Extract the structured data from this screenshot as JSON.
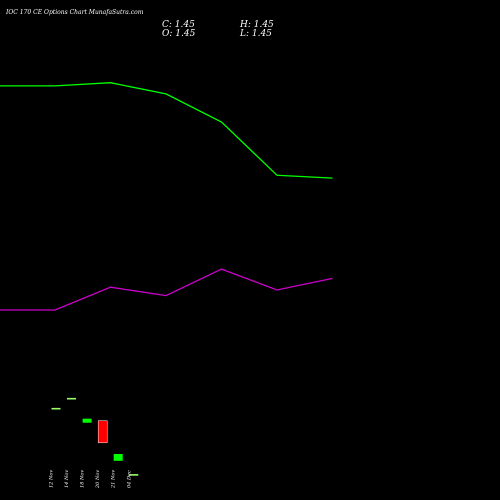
{
  "header": {
    "title": "IOC 170 CE Options Chart MunafaSutra.com",
    "close": "C: 1.45",
    "open": "O: 1.45",
    "high": "H: 1.45",
    "low": "L: 1.45"
  },
  "colors": {
    "background": "#000000",
    "upper_line": "#00ff00",
    "lower_line": "#cc00cc",
    "bull_candle": "#00ff00",
    "bear_candle": "#ff0000",
    "doji": "#99ff66"
  },
  "chart_data": {
    "type": "candlestick",
    "title": "IOC 170 CE Options Chart MunafaSutra.com",
    "x": [
      "12 Nov",
      "14 Nov",
      "18 Nov",
      "20 Nov",
      "21 Nov",
      "04 Dec"
    ],
    "candles": [
      {
        "date": "12 Nov",
        "open": 3.1,
        "high": 3.1,
        "low": 3.1,
        "close": 3.1,
        "color": "doji"
      },
      {
        "date": "14 Nov",
        "open": 3.35,
        "high": 3.35,
        "low": 3.35,
        "close": 3.35,
        "color": "doji"
      },
      {
        "date": "18 Nov",
        "open": 2.75,
        "high": 2.85,
        "low": 2.75,
        "close": 2.85,
        "color": "bull"
      },
      {
        "date": "20 Nov",
        "open": 2.8,
        "high": 2.8,
        "low": 2.25,
        "close": 2.25,
        "color": "bear"
      },
      {
        "date": "21 Nov",
        "open": 1.8,
        "high": 1.97,
        "low": 1.8,
        "close": 1.97,
        "color": "bull"
      },
      {
        "date": "04 Dec",
        "open": 1.45,
        "high": 1.45,
        "low": 1.45,
        "close": 1.45,
        "color": "doji"
      }
    ],
    "overlay_lines": [
      {
        "color": "#00ff00",
        "values": [
          11.15,
          11.15,
          11.23,
          10.95,
          10.25,
          8.92,
          8.85
        ]
      },
      {
        "color": "#cc00cc",
        "values": [
          5.56,
          5.56,
          6.13,
          5.92,
          6.58,
          6.06,
          6.35
        ]
      }
    ],
    "overlay_x_index": [
      -1,
      0,
      1,
      2,
      3,
      4,
      5
    ],
    "x_axis_position": "bottom",
    "grid": false,
    "legend": "none"
  }
}
